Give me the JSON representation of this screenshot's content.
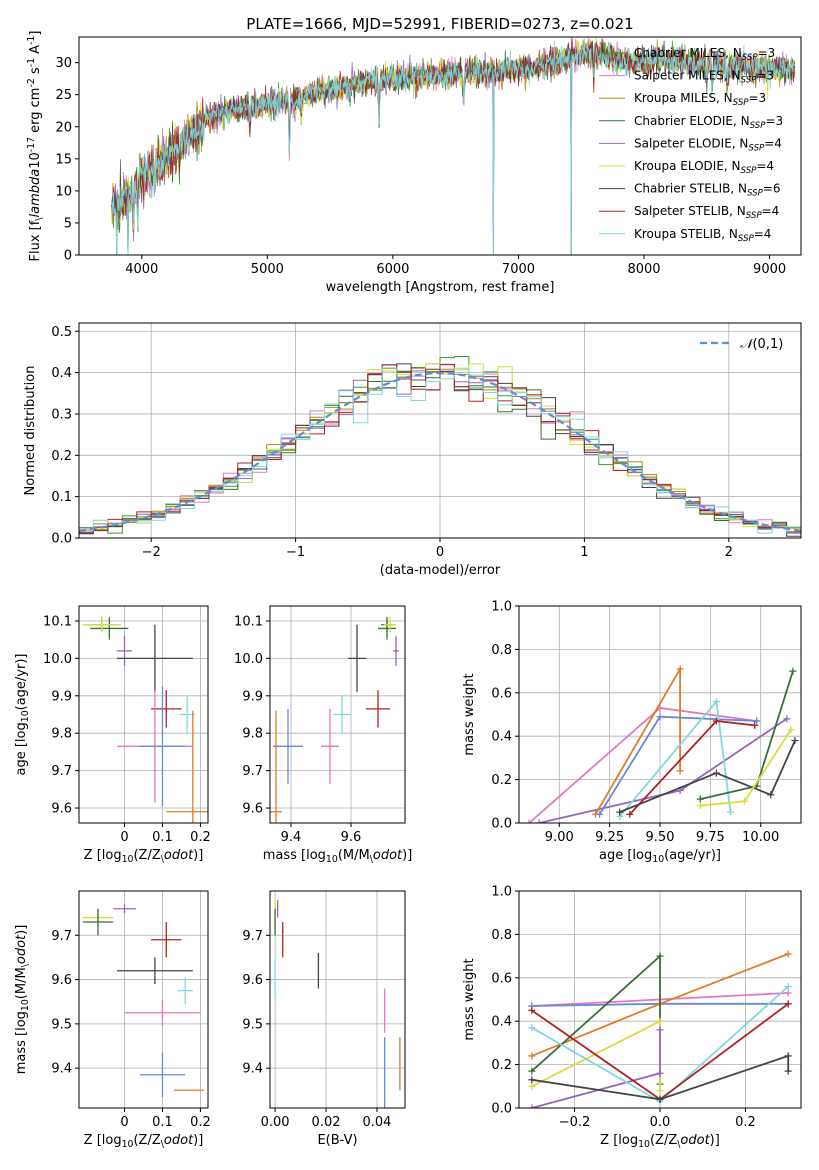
{
  "figure_title": "PLATE=1666, MJD=52991, FIBERID=0273, z=0.021",
  "models": [
    {
      "name": "Chabrier MILES",
      "nssp": "3",
      "color": "#2ca02c"
    },
    {
      "name": "Salpeter MILES",
      "nssp": "3",
      "color": "#e377c2"
    },
    {
      "name": "Kroupa MILES",
      "nssp": "3",
      "color": "#b8860b"
    },
    {
      "name": "Chabrier ELODIE",
      "nssp": "3",
      "color": "#3a6e3a"
    },
    {
      "name": "Salpeter ELODIE",
      "nssp": "4",
      "color": "#9467bd"
    },
    {
      "name": "Kroupa ELODIE",
      "nssp": "4",
      "color": "#dbdb3c"
    },
    {
      "name": "Chabrier STELIB",
      "nssp": "6",
      "color": "#444444"
    },
    {
      "name": "Salpeter STELIB",
      "nssp": "4",
      "color": "#b22222"
    },
    {
      "name": "Kroupa STELIB",
      "nssp": "4",
      "color": "#7fd8e0"
    }
  ],
  "chart_data": [
    {
      "id": "spectrum",
      "type": "line",
      "xlabel": "wavelength [Angstrom, rest frame]",
      "ylabel": "Flux [f$_\\lambda$10$^{-17}$ erg cm$^{-2}$ s$^{-1}$ A$^{-1}$]",
      "xlim": [
        3500,
        9250
      ],
      "ylim": [
        0,
        34
      ],
      "xticks": [
        4000,
        5000,
        6000,
        7000,
        8000,
        9000
      ],
      "yticks": [
        0,
        5,
        10,
        15,
        20,
        25,
        30
      ],
      "continuum": [
        [
          3760,
          8
        ],
        [
          3800,
          8
        ],
        [
          3900,
          9
        ],
        [
          4000,
          12
        ],
        [
          4100,
          14
        ],
        [
          4200,
          15
        ],
        [
          4300,
          17
        ],
        [
          4400,
          19
        ],
        [
          4500,
          21
        ],
        [
          4600,
          22
        ],
        [
          4700,
          22.5
        ],
        [
          4800,
          23
        ],
        [
          5000,
          23.5
        ],
        [
          5200,
          24
        ],
        [
          5400,
          25.5
        ],
        [
          5600,
          26
        ],
        [
          5800,
          27
        ],
        [
          6000,
          27.5
        ],
        [
          6200,
          27.8
        ],
        [
          6400,
          28
        ],
        [
          6600,
          28.5
        ],
        [
          6800,
          28.5
        ],
        [
          7000,
          28.8
        ],
        [
          7200,
          29.5
        ],
        [
          7400,
          31
        ],
        [
          7600,
          31.5
        ],
        [
          7800,
          30.5
        ],
        [
          8000,
          30.2
        ],
        [
          8200,
          30.5
        ],
        [
          8400,
          30
        ],
        [
          8600,
          29.5
        ],
        [
          8800,
          29.3
        ],
        [
          9000,
          29
        ],
        [
          9200,
          29
        ]
      ],
      "drops": [
        {
          "x": 3800,
          "y": -1
        },
        {
          "x": 3890,
          "y": -1
        },
        {
          "x": 6800,
          "y": 0
        },
        {
          "x": 7420,
          "y": 0
        }
      ],
      "legend_position": "upper-right"
    },
    {
      "id": "residuals",
      "type": "step",
      "xlabel": "(data-model)/error",
      "ylabel": "Normed distribution",
      "xlim": [
        -2.5,
        2.5
      ],
      "ylim": [
        0,
        0.52
      ],
      "xticks": [
        -2,
        -1,
        0,
        1,
        2
      ],
      "xticklabels": [
        "−2",
        "−1",
        "0",
        "1",
        "2"
      ],
      "yticks": [
        0.0,
        0.1,
        0.2,
        0.3,
        0.4,
        0.5
      ],
      "reference_label": "$\\mathcal{N}(0,1)$",
      "legend_position": "upper-right"
    },
    {
      "id": "age_vs_Z",
      "type": "errorbar",
      "xlabel": "Z [log$_{10}$(Z/Z$_\\odot$)]",
      "ylabel": "age  [log$_{10}$(age/yr)]",
      "xlim": [
        -0.12,
        0.22
      ],
      "ylim": [
        9.56,
        10.14
      ],
      "xticks": [
        0.0,
        0.1,
        0.2
      ],
      "yticks": [
        9.6,
        9.7,
        9.8,
        9.9,
        10.0,
        10.1
      ],
      "points": [
        {
          "x": -0.06,
          "y": 10.09,
          "xerr": 0.04,
          "yerr": 0.02,
          "c": "#2ca02c"
        },
        {
          "x": -0.04,
          "y": 10.08,
          "xerr": 0.05,
          "yerr": 0.03,
          "c": "#3a6e3a"
        },
        {
          "x": -0.06,
          "y": 10.09,
          "xerr": 0.05,
          "yerr": 0.02,
          "c": "#dbdb3c"
        },
        {
          "x": 0.0,
          "y": 10.02,
          "xerr": 0.02,
          "yerr": 0.04,
          "c": "#9467bd"
        },
        {
          "x": 0.08,
          "y": 10.0,
          "xerr": 0.1,
          "yerr": 0.09,
          "c": "#444444"
        },
        {
          "x": 0.11,
          "y": 9.865,
          "xerr": 0.04,
          "yerr": 0.05,
          "c": "#b22222"
        },
        {
          "x": 0.165,
          "y": 9.85,
          "xerr": 0.02,
          "yerr": 0.05,
          "c": "#7fd8e0"
        },
        {
          "x": 0.08,
          "y": 9.765,
          "xerr": 0.1,
          "yerr": 0.15,
          "c": "#e377c2"
        },
        {
          "x": 0.1,
          "y": 9.765,
          "xerr": 0.06,
          "yerr": 0.16,
          "c": "#6688dd"
        },
        {
          "x": 0.18,
          "y": 9.59,
          "xerr": 0.07,
          "yerr": 0.27,
          "c": "#e07b2a"
        }
      ]
    },
    {
      "id": "age_vs_mass",
      "type": "errorbar",
      "xlabel": "mass [log$_{10}$(M/M$_\\odot$)]",
      "ylabel": "",
      "xlim": [
        9.33,
        9.78
      ],
      "ylim": [
        9.56,
        10.14
      ],
      "xticks": [
        9.4,
        9.6
      ],
      "yticks": [
        9.6,
        9.7,
        9.8,
        9.9,
        10.0,
        10.1
      ],
      "points": [
        {
          "x": 9.72,
          "y": 10.09,
          "xerr": 0.02,
          "yerr": 0.02,
          "c": "#2ca02c"
        },
        {
          "x": 9.72,
          "y": 10.08,
          "xerr": 0.03,
          "yerr": 0.03,
          "c": "#3a6e3a"
        },
        {
          "x": 9.73,
          "y": 10.09,
          "xerr": 0.02,
          "yerr": 0.02,
          "c": "#dbdb3c"
        },
        {
          "x": 9.75,
          "y": 10.02,
          "xerr": 0.01,
          "yerr": 0.04,
          "c": "#9467bd"
        },
        {
          "x": 9.62,
          "y": 10.0,
          "xerr": 0.03,
          "yerr": 0.09,
          "c": "#444444"
        },
        {
          "x": 9.69,
          "y": 9.865,
          "xerr": 0.04,
          "yerr": 0.05,
          "c": "#b22222"
        },
        {
          "x": 9.57,
          "y": 9.85,
          "xerr": 0.03,
          "yerr": 0.05,
          "c": "#7fd8e0"
        },
        {
          "x": 9.53,
          "y": 9.765,
          "xerr": 0.03,
          "yerr": 0.1,
          "c": "#e377c2"
        },
        {
          "x": 9.39,
          "y": 9.765,
          "xerr": 0.05,
          "yerr": 0.1,
          "c": "#6688dd"
        },
        {
          "x": 9.35,
          "y": 9.59,
          "xerr": 0.02,
          "yerr": 0.27,
          "c": "#e07b2a"
        }
      ]
    },
    {
      "id": "weight_vs_age",
      "type": "line",
      "xlabel": "age  [log$_{10}$(age/yr)]",
      "ylabel": "mass weight",
      "xlim": [
        8.8,
        10.2
      ],
      "ylim": [
        0,
        1
      ],
      "xticks": [
        9.0,
        9.25,
        9.5,
        9.75,
        10.0
      ],
      "xticklabels": [
        "9.00",
        "9.25",
        "9.50",
        "9.75",
        "10.00"
      ],
      "yticks": [
        0.0,
        0.2,
        0.4,
        0.6,
        0.8,
        1.0
      ],
      "series": [
        {
          "c": "#e377c2",
          "pts": [
            [
              8.85,
              0.0
            ],
            [
              9.5,
              0.53
            ],
            [
              9.98,
              0.47
            ]
          ]
        },
        {
          "c": "#9467bd",
          "pts": [
            [
              8.9,
              0.0
            ],
            [
              9.6,
              0.15
            ],
            [
              10.13,
              0.48
            ]
          ]
        },
        {
          "c": "#e07b2a",
          "pts": [
            [
              9.18,
              0.04
            ],
            [
              9.6,
              0.71
            ],
            [
              9.6,
              0.24
            ]
          ]
        },
        {
          "c": "#6688dd",
          "pts": [
            [
              9.2,
              0.04
            ],
            [
              9.5,
              0.49
            ],
            [
              9.98,
              0.47
            ]
          ]
        },
        {
          "c": "#7fd8e0",
          "pts": [
            [
              9.3,
              0.03
            ],
            [
              9.78,
              0.56
            ],
            [
              9.85,
              0.05
            ]
          ]
        },
        {
          "c": "#b22222",
          "pts": [
            [
              9.35,
              0.04
            ],
            [
              9.78,
              0.47
            ],
            [
              9.97,
              0.45
            ]
          ]
        },
        {
          "c": "#444444",
          "pts": [
            [
              9.3,
              0.05
            ],
            [
              9.78,
              0.23
            ],
            [
              10.05,
              0.13
            ],
            [
              10.17,
              0.38
            ]
          ]
        },
        {
          "c": "#3a6e3a",
          "pts": [
            [
              9.7,
              0.11
            ],
            [
              9.98,
              0.17
            ],
            [
              10.16,
              0.7
            ]
          ]
        },
        {
          "c": "#dbdb3c",
          "pts": [
            [
              9.7,
              0.08
            ],
            [
              9.92,
              0.1
            ],
            [
              10.15,
              0.43
            ]
          ]
        }
      ]
    },
    {
      "id": "mass_vs_Z",
      "type": "errorbar",
      "xlabel": "Z [log$_{10}$(Z/Z$_\\odot$)]",
      "ylabel": "mass [log$_{10}$(M/M$_\\odot$)]",
      "xlim": [
        -0.12,
        0.22
      ],
      "ylim": [
        9.31,
        9.8
      ],
      "xticks": [
        0.0,
        0.1,
        0.2
      ],
      "yticks": [
        9.4,
        9.5,
        9.6,
        9.7
      ],
      "points": [
        {
          "x": -0.07,
          "y": 9.74,
          "xerr": 0.04,
          "yerr": 0.02,
          "c": "#dbdb3c"
        },
        {
          "x": -0.07,
          "y": 9.73,
          "xerr": 0.04,
          "yerr": 0.03,
          "c": "#3a6e3a"
        },
        {
          "x": 0.0,
          "y": 9.76,
          "xerr": 0.03,
          "yerr": 0.01,
          "c": "#9467bd"
        },
        {
          "x": 0.11,
          "y": 9.69,
          "xerr": 0.04,
          "yerr": 0.04,
          "c": "#b22222"
        },
        {
          "x": 0.08,
          "y": 9.62,
          "xerr": 0.1,
          "yerr": 0.03,
          "c": "#444444"
        },
        {
          "x": 0.16,
          "y": 9.575,
          "xerr": 0.02,
          "yerr": 0.03,
          "c": "#7fd8e0"
        },
        {
          "x": 0.1,
          "y": 9.525,
          "xerr": 0.1,
          "yerr": 0.03,
          "c": "#e377c2"
        },
        {
          "x": 0.1,
          "y": 9.385,
          "xerr": 0.06,
          "yerr": 0.05,
          "c": "#6688dd"
        },
        {
          "x": 0.17,
          "y": 9.35,
          "xerr": 0.04,
          "yerr": 0.0,
          "c": "#e07b2a"
        }
      ]
    },
    {
      "id": "mass_vs_EBV",
      "type": "errorbar",
      "xlabel": "E(B-V)",
      "ylabel": "",
      "xlim": [
        -0.002,
        0.051
      ],
      "ylim": [
        9.31,
        9.8
      ],
      "xticks": [
        0.0,
        0.02,
        0.04
      ],
      "xticklabels": [
        "0.00",
        "0.02",
        "0.04"
      ],
      "yticks": [
        9.4,
        9.5,
        9.6,
        9.7
      ],
      "points": [
        {
          "x": 0.0,
          "y": 9.74,
          "xerr": 0,
          "yerr": 0.04,
          "c": "#dbdb3c"
        },
        {
          "x": 0.0,
          "y": 9.73,
          "xerr": 0,
          "yerr": 0.03,
          "c": "#3a6e3a"
        },
        {
          "x": 0.001,
          "y": 9.76,
          "xerr": 0,
          "yerr": 0.02,
          "c": "#9467bd"
        },
        {
          "x": 0.003,
          "y": 9.69,
          "xerr": 0,
          "yerr": 0.04,
          "c": "#b22222"
        },
        {
          "x": 0.017,
          "y": 9.62,
          "xerr": 0,
          "yerr": 0.04,
          "c": "#444444"
        },
        {
          "x": 0.0,
          "y": 9.6,
          "xerr": 0,
          "yerr": 0.04,
          "c": "#7fd8e0"
        },
        {
          "x": 0.043,
          "y": 9.53,
          "xerr": 0,
          "yerr": 0.05,
          "c": "#e377c2"
        },
        {
          "x": 0.043,
          "y": 9.39,
          "xerr": 0,
          "yerr": 0.08,
          "c": "#6688dd"
        },
        {
          "x": 0.049,
          "y": 9.41,
          "xerr": 0,
          "yerr": 0.06,
          "c": "#e07b2a"
        }
      ]
    },
    {
      "id": "weight_vs_Z",
      "type": "line",
      "xlabel": "Z [log$_{10}$(Z/Z$_\\odot$)]",
      "ylabel": "mass weight",
      "xlim": [
        -0.33,
        0.33
      ],
      "ylim": [
        0,
        1
      ],
      "xticks": [
        -0.2,
        0.0,
        0.2
      ],
      "xticklabels": [
        "−0.2",
        "0.0",
        "0.2"
      ],
      "yticks": [
        0.0,
        0.2,
        0.4,
        0.6,
        0.8,
        1.0
      ],
      "series": [
        {
          "c": "#e377c2",
          "pts": [
            [
              -0.3,
              0.47
            ],
            [
              0.0,
              0.5
            ],
            [
              0.3,
              0.53
            ]
          ]
        },
        {
          "c": "#6688dd",
          "pts": [
            [
              -0.3,
              0.47
            ],
            [
              0.0,
              0.48
            ],
            [
              0.3,
              0.48
            ]
          ]
        },
        {
          "c": "#e07b2a",
          "pts": [
            [
              -0.3,
              0.24
            ],
            [
              0.0,
              0.48
            ],
            [
              0.3,
              0.71
            ]
          ]
        },
        {
          "c": "#3a6e3a",
          "pts": [
            [
              -0.3,
              0.17
            ],
            [
              0.0,
              0.7
            ],
            [
              0.0,
              0.11
            ]
          ]
        },
        {
          "c": "#dbdb3c",
          "pts": [
            [
              -0.3,
              0.1
            ],
            [
              0.0,
              0.4
            ],
            [
              0.0,
              0.08
            ]
          ]
        },
        {
          "c": "#9467bd",
          "pts": [
            [
              -0.3,
              0.0
            ],
            [
              0.0,
              0.16
            ],
            [
              0.0,
              0.36
            ]
          ]
        },
        {
          "c": "#7fd8e0",
          "pts": [
            [
              -0.3,
              0.37
            ],
            [
              0.0,
              0.03
            ],
            [
              0.3,
              0.56
            ]
          ]
        },
        {
          "c": "#b22222",
          "pts": [
            [
              -0.3,
              0.45
            ],
            [
              0.0,
              0.04
            ],
            [
              0.3,
              0.48
            ]
          ]
        },
        {
          "c": "#444444",
          "pts": [
            [
              -0.3,
              0.13
            ],
            [
              0.0,
              0.04
            ],
            [
              0.3,
              0.24
            ],
            [
              0.3,
              0.17
            ]
          ]
        }
      ]
    }
  ]
}
